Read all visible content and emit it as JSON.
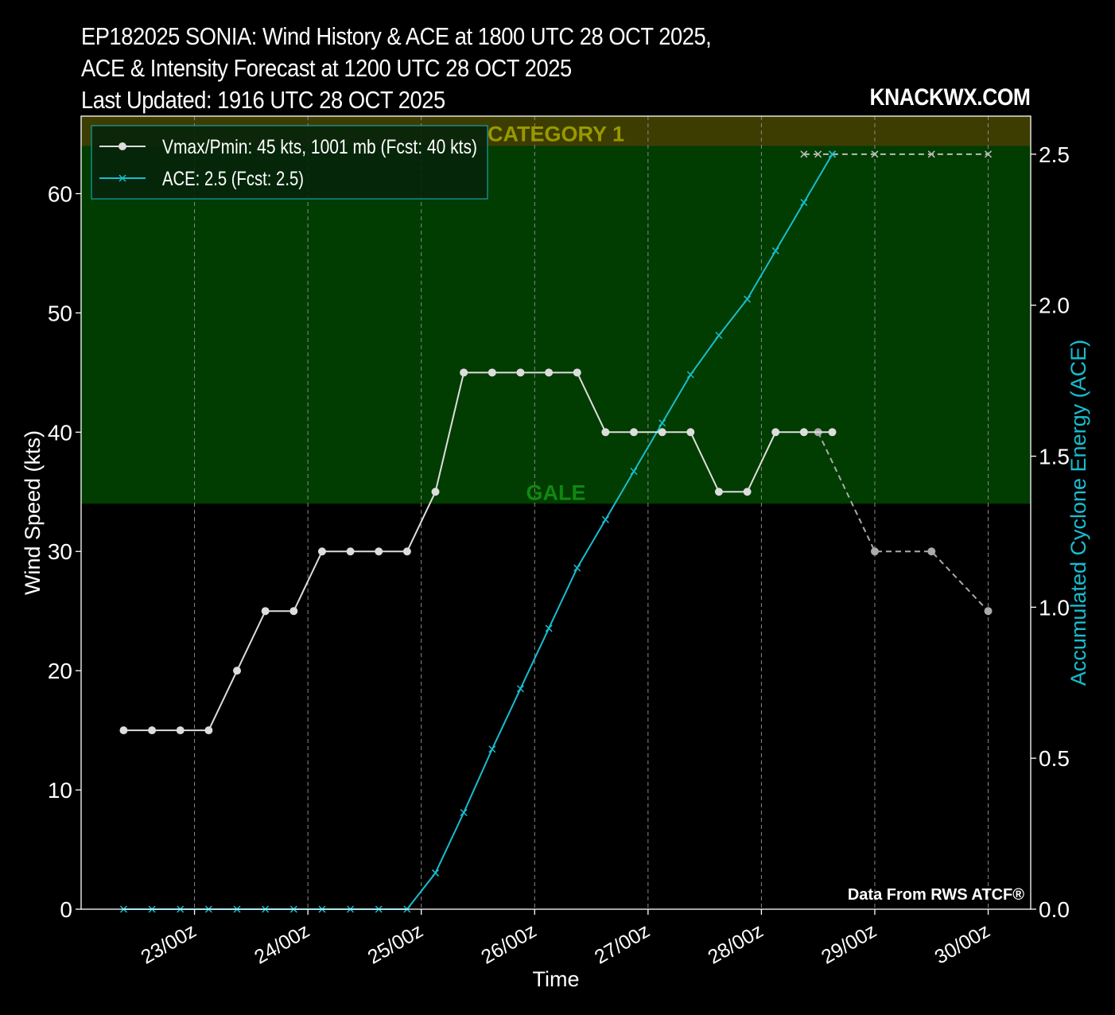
{
  "header": {
    "title_lines": [
      "EP182025 SONIA: Wind History & ACE at 1800 UTC 28 OCT 2025,",
      "ACE & Intensity Forecast at 1200 UTC 28 OCT 2025",
      "Last Updated: 1916 UTC 28 OCT 2025"
    ],
    "brand": "KNACKWX.COM"
  },
  "colors": {
    "background": "#000000",
    "wind": "#dddddd",
    "wind_forecast": "#aaaaaa",
    "ace": "#17becf",
    "gale_band": "#013c01",
    "cat1_band": "#3d3d02",
    "gale_label": "#118811",
    "cat1_label": "#999900"
  },
  "chart_data": {
    "type": "line",
    "xlabel": "Time",
    "ylabel": "Wind Speed (kts)",
    "y2label": "Accumulated Cyclone Energy (ACE)",
    "ylim": [
      0,
      66.5
    ],
    "y2lim": [
      0,
      2.626
    ],
    "yticks": [
      0,
      10,
      20,
      30,
      40,
      50,
      60
    ],
    "y2ticks": [
      "0.0",
      "0.5",
      "1.0",
      "1.5",
      "2.0",
      "2.5"
    ],
    "xlim_days": [
      22.0,
      30.375
    ],
    "xticks": [
      {
        "day": 23,
        "label": "23/00z"
      },
      {
        "day": 24,
        "label": "24/00z"
      },
      {
        "day": 25,
        "label": "25/00z"
      },
      {
        "day": 26,
        "label": "26/00z"
      },
      {
        "day": 27,
        "label": "27/00z"
      },
      {
        "day": 28,
        "label": "28/00z"
      },
      {
        "day": 29,
        "label": "29/00z"
      },
      {
        "day": 30,
        "label": "30/00z"
      }
    ],
    "bands": [
      {
        "label": "GALE",
        "from": 34,
        "to": 64
      },
      {
        "label": "CATEGORY 1",
        "from": 64,
        "to": 66.5
      }
    ],
    "legend": {
      "position": "top-left",
      "entries": [
        "Vmax/Pmin: 45 kts, 1001 mb (Fcst: 40 kts)",
        "ACE: 2.5 (Fcst: 2.5)"
      ]
    },
    "series": [
      {
        "name": "Vmax/Pmin: 45 kts, 1001 mb (Fcst: 40 kts)",
        "axis": "left",
        "x": [
          22.375,
          22.625,
          22.875,
          23.125,
          23.375,
          23.625,
          23.875,
          24.125,
          24.375,
          24.625,
          24.875,
          25.125,
          25.375,
          25.625,
          25.875,
          26.125,
          26.375,
          26.625,
          26.875,
          27.125,
          27.375,
          27.625,
          27.875,
          28.125,
          28.375,
          28.625
        ],
        "values": [
          15,
          15,
          15,
          15,
          20,
          25,
          25,
          30,
          30,
          30,
          30,
          35,
          45,
          45,
          45,
          45,
          45,
          40,
          40,
          40,
          40,
          35,
          35,
          40,
          40,
          40
        ]
      },
      {
        "name": "Wind forecast",
        "axis": "left",
        "style": "dashed",
        "x": [
          28.5,
          29.0,
          29.5,
          30.0
        ],
        "values": [
          40,
          30,
          30,
          25
        ]
      },
      {
        "name": "ACE: 2.5 (Fcst: 2.5)",
        "axis": "right",
        "x": [
          22.375,
          22.625,
          22.875,
          23.125,
          23.375,
          23.625,
          23.875,
          24.125,
          24.375,
          24.625,
          24.875,
          25.125,
          25.375,
          25.625,
          25.875,
          26.125,
          26.375,
          26.625,
          26.875,
          27.125,
          27.375,
          27.625,
          27.875,
          28.125,
          28.375,
          28.625
        ],
        "values": [
          0,
          0,
          0,
          0,
          0,
          0,
          0,
          0,
          0,
          0,
          0,
          0.12,
          0.32,
          0.53,
          0.73,
          0.93,
          1.13,
          1.29,
          1.45,
          1.61,
          1.77,
          1.9,
          2.02,
          2.18,
          2.34,
          2.5
        ]
      },
      {
        "name": "ACE forecast",
        "axis": "right",
        "style": "dashed",
        "x": [
          28.375,
          28.5,
          28.625,
          29.0,
          29.5,
          30.0
        ],
        "values": [
          2.5,
          2.5,
          2.5,
          2.5,
          2.5,
          2.5
        ]
      }
    ],
    "annotations": {
      "gale": "GALE",
      "cat1": "CATEGORY 1",
      "source": "Data From RWS ATCF®"
    }
  }
}
